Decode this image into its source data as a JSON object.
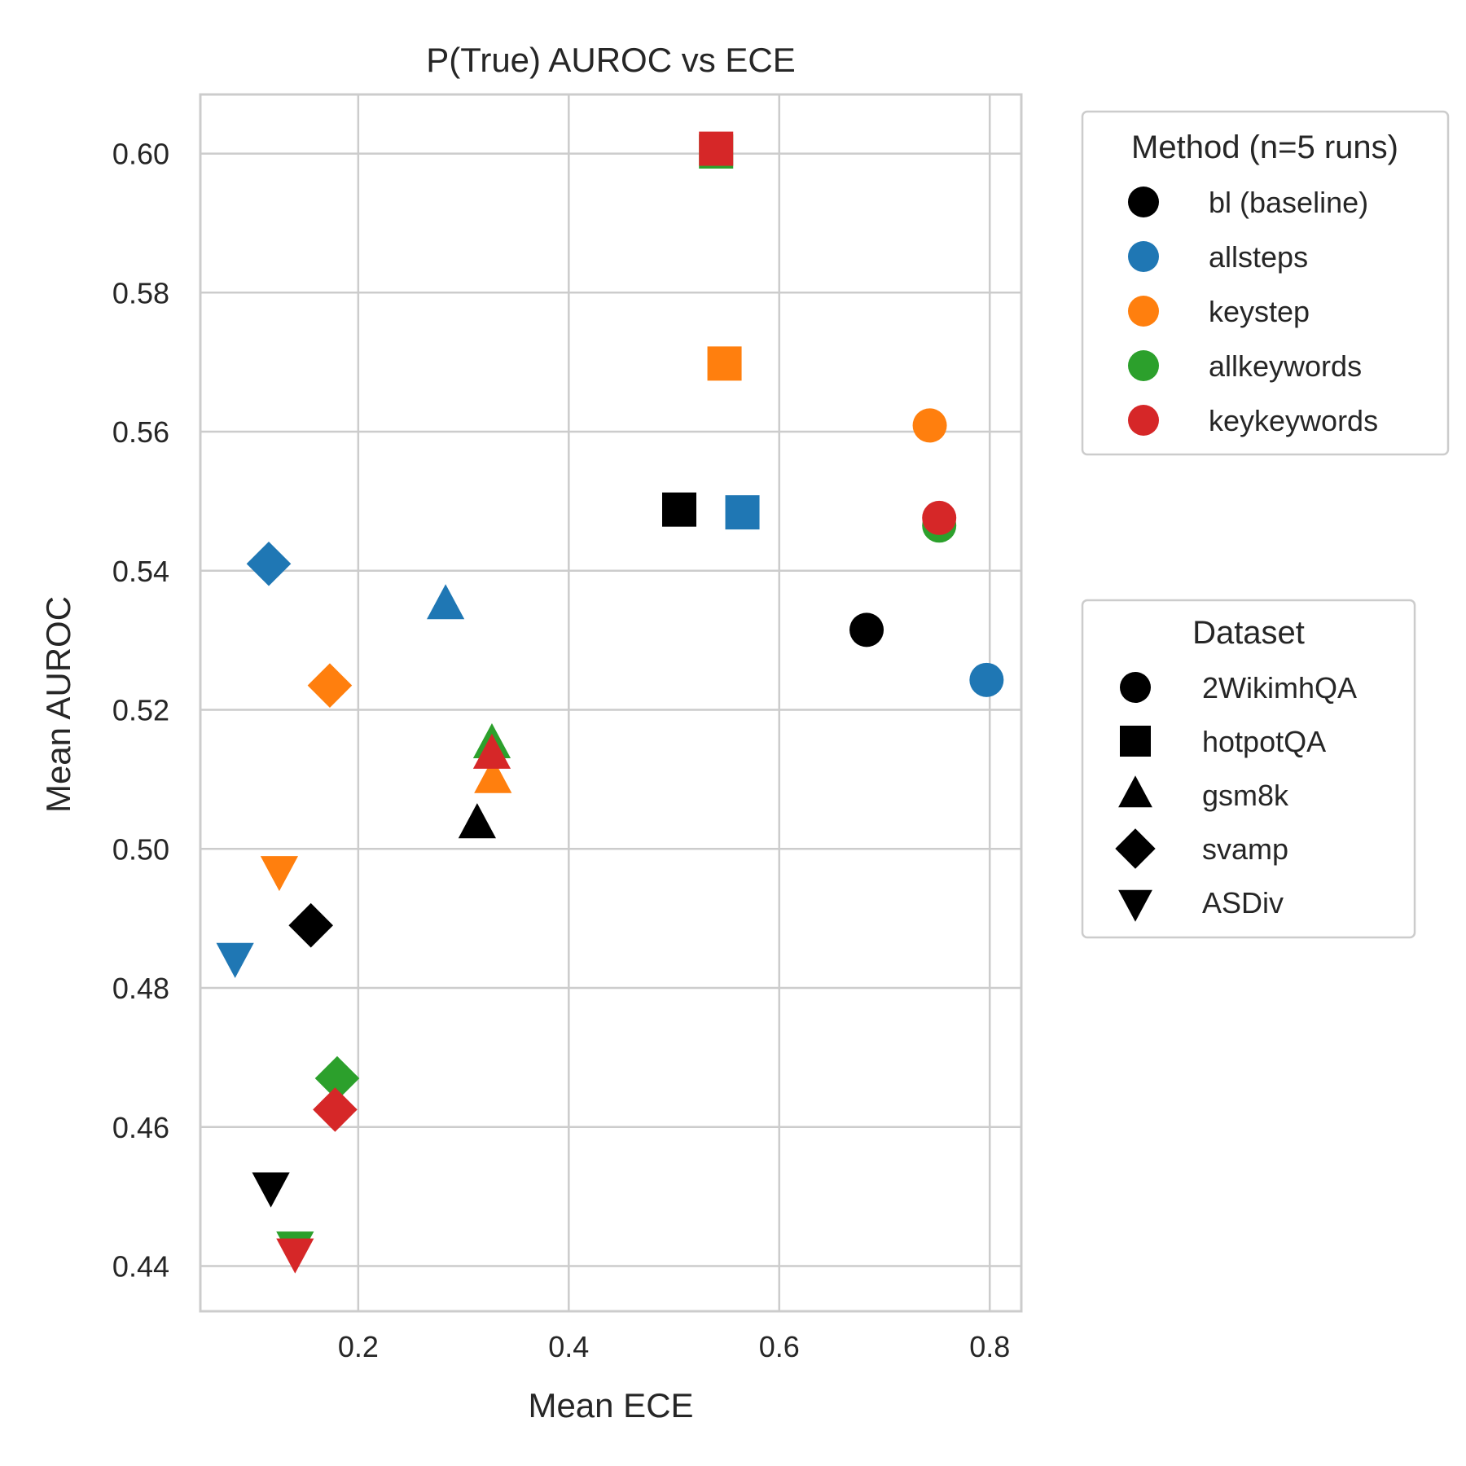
{
  "chart_data": {
    "type": "scatter",
    "title": "P(True) AUROC vs ECE",
    "xlabel": "Mean ECE",
    "ylabel": "Mean AUROC",
    "xlim": [
      0.05,
      0.83
    ],
    "ylim": [
      0.4335,
      0.6085
    ],
    "xticks": [
      "0.2",
      "0.4",
      "0.6",
      "0.8"
    ],
    "yticks": [
      "0.44",
      "0.46",
      "0.48",
      "0.50",
      "0.52",
      "0.54",
      "0.56",
      "0.58",
      "0.60"
    ],
    "grid": true,
    "legend_method": {
      "title": "Method (n=5 runs)",
      "placement": "upper right, outside",
      "entries": [
        {
          "label": "bl (baseline)",
          "color": "#000000"
        },
        {
          "label": "allsteps",
          "color": "#1f77b4"
        },
        {
          "label": "keystep",
          "color": "#ff7f0e"
        },
        {
          "label": "allkeywords",
          "color": "#2ca02c"
        },
        {
          "label": "keykeywords",
          "color": "#d62728"
        }
      ]
    },
    "legend_dataset": {
      "title": "Dataset",
      "placement": "center right, outside",
      "entries": [
        {
          "label": "2WikimhQA",
          "marker": "circle"
        },
        {
          "label": "hotpotQA",
          "marker": "square"
        },
        {
          "label": "gsm8k",
          "marker": "triangle-up"
        },
        {
          "label": "svamp",
          "marker": "diamond"
        },
        {
          "label": "ASDiv",
          "marker": "triangle-down"
        }
      ]
    },
    "points": [
      {
        "method": "bl (baseline)",
        "dataset": "2WikimhQA",
        "x": 0.683,
        "y": 0.5315
      },
      {
        "method": "bl (baseline)",
        "dataset": "hotpotQA",
        "x": 0.505,
        "y": 0.5488
      },
      {
        "method": "bl (baseline)",
        "dataset": "gsm8k",
        "x": 0.313,
        "y": 0.5035
      },
      {
        "method": "bl (baseline)",
        "dataset": "svamp",
        "x": 0.155,
        "y": 0.489
      },
      {
        "method": "bl (baseline)",
        "dataset": "ASDiv",
        "x": 0.117,
        "y": 0.4515
      },
      {
        "method": "allsteps",
        "dataset": "2WikimhQA",
        "x": 0.797,
        "y": 0.5243
      },
      {
        "method": "allsteps",
        "dataset": "hotpotQA",
        "x": 0.565,
        "y": 0.5484
      },
      {
        "method": "allsteps",
        "dataset": "gsm8k",
        "x": 0.283,
        "y": 0.535
      },
      {
        "method": "allsteps",
        "dataset": "svamp",
        "x": 0.115,
        "y": 0.541
      },
      {
        "method": "allsteps",
        "dataset": "ASDiv",
        "x": 0.083,
        "y": 0.4845
      },
      {
        "method": "keystep",
        "dataset": "2WikimhQA",
        "x": 0.743,
        "y": 0.5609
      },
      {
        "method": "keystep",
        "dataset": "hotpotQA",
        "x": 0.548,
        "y": 0.5698
      },
      {
        "method": "keystep",
        "dataset": "gsm8k",
        "x": 0.328,
        "y": 0.51
      },
      {
        "method": "keystep",
        "dataset": "svamp",
        "x": 0.173,
        "y": 0.5235
      },
      {
        "method": "keystep",
        "dataset": "ASDiv",
        "x": 0.125,
        "y": 0.497
      },
      {
        "method": "allkeywords",
        "dataset": "2WikimhQA",
        "x": 0.752,
        "y": 0.5465
      },
      {
        "method": "allkeywords",
        "dataset": "hotpotQA",
        "x": 0.54,
        "y": 0.6003
      },
      {
        "method": "allkeywords",
        "dataset": "gsm8k",
        "x": 0.327,
        "y": 0.515
      },
      {
        "method": "allkeywords",
        "dataset": "svamp",
        "x": 0.18,
        "y": 0.467
      },
      {
        "method": "allkeywords",
        "dataset": "ASDiv",
        "x": 0.14,
        "y": 0.443
      },
      {
        "method": "keykeywords",
        "dataset": "2WikimhQA",
        "x": 0.752,
        "y": 0.5476
      },
      {
        "method": "keykeywords",
        "dataset": "hotpotQA",
        "x": 0.54,
        "y": 0.6007
      },
      {
        "method": "keykeywords",
        "dataset": "gsm8k",
        "x": 0.327,
        "y": 0.5135
      },
      {
        "method": "keykeywords",
        "dataset": "svamp",
        "x": 0.178,
        "y": 0.4625
      },
      {
        "method": "keykeywords",
        "dataset": "ASDiv",
        "x": 0.14,
        "y": 0.442
      }
    ]
  }
}
